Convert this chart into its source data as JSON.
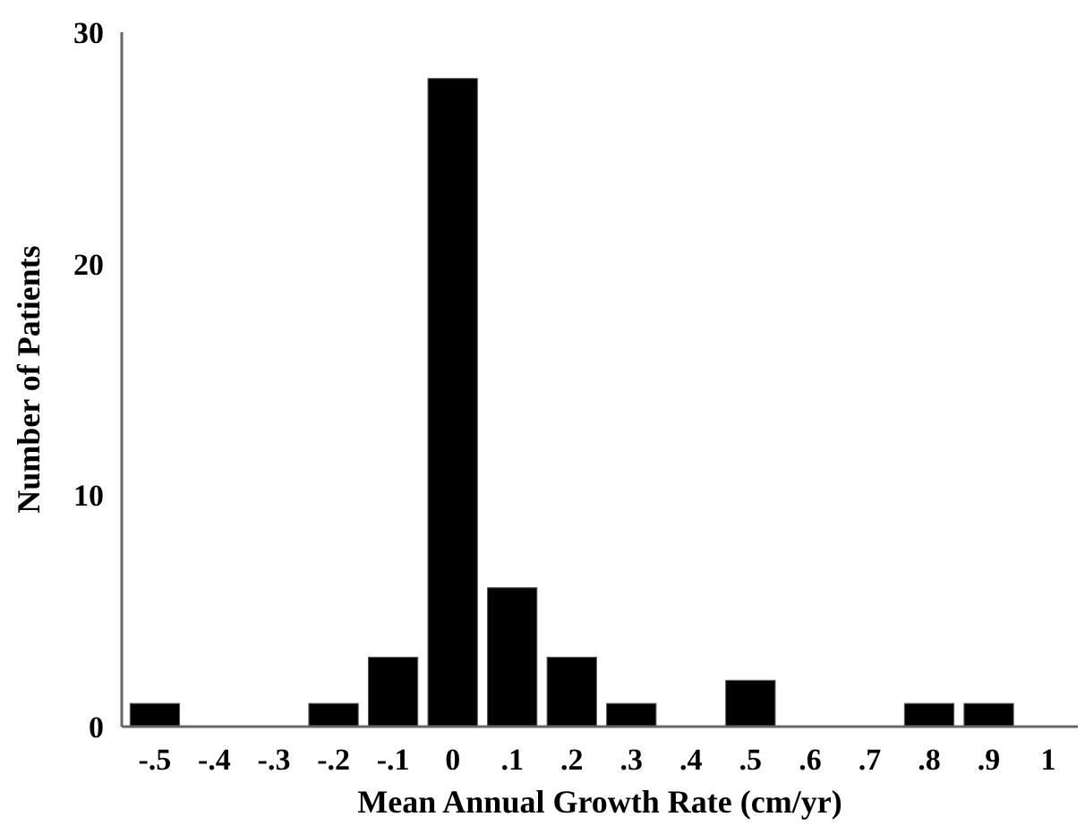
{
  "chart_data": {
    "type": "bar",
    "xlabel": "Mean Annual Growth Rate (cm/yr)",
    "ylabel": "Number of Patients",
    "categories": [
      "-.5",
      "-.4",
      "-.3",
      "-.2",
      "-.1",
      "0",
      ".1",
      ".2",
      ".3",
      ".4",
      ".5",
      ".6",
      ".7",
      ".8",
      ".9",
      "1"
    ],
    "values": [
      1,
      0,
      0,
      1,
      3,
      28,
      6,
      3,
      1,
      0,
      2,
      0,
      0,
      1,
      1,
      0
    ],
    "color": "#000000",
    "ylim": [
      0,
      30
    ],
    "yticks": [
      0,
      10,
      20,
      30
    ],
    "grid": false
  }
}
